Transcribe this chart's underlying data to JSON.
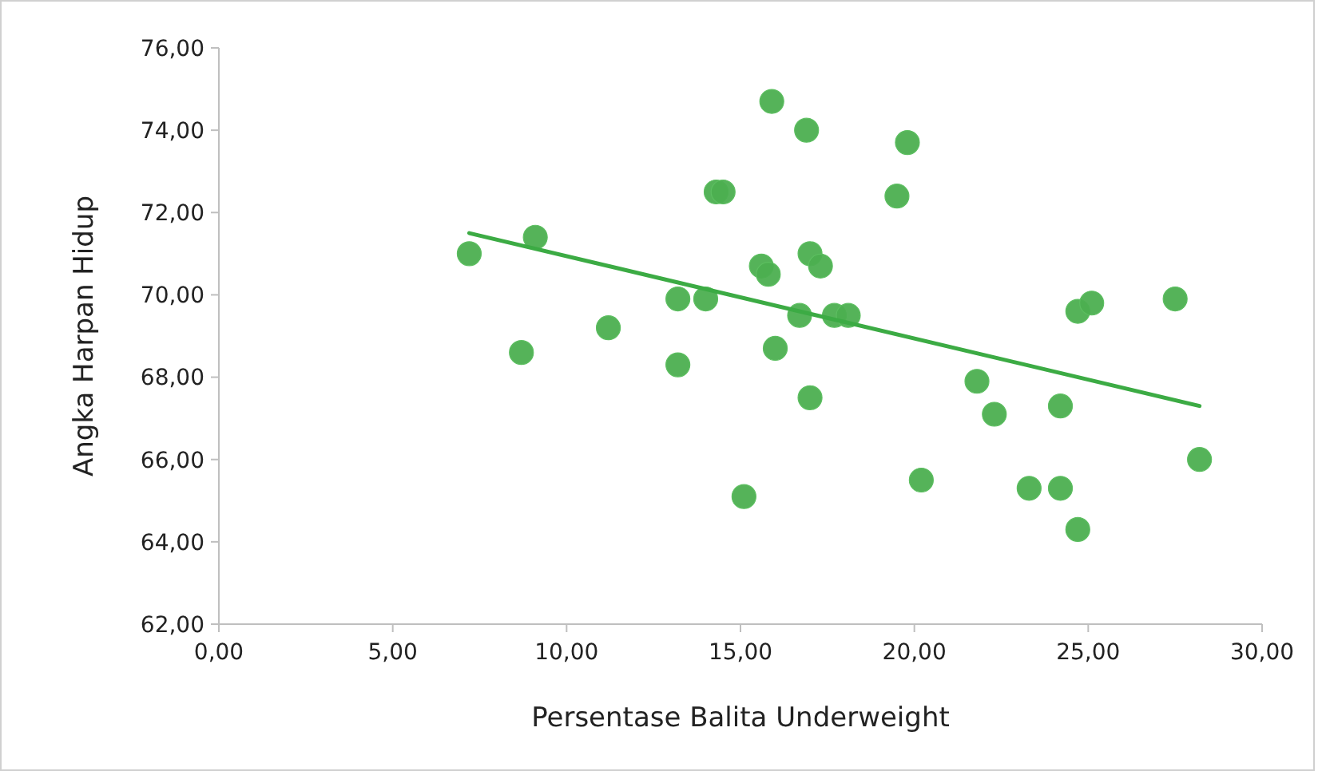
{
  "chart_data": {
    "type": "scatter",
    "xlabel": "Persentase Balita Underweight",
    "ylabel": "Angka Harpan Hidup",
    "xlim": [
      0,
      30
    ],
    "ylim": [
      62,
      76
    ],
    "xticks": [
      {
        "value": 0,
        "label": "0,00"
      },
      {
        "value": 5,
        "label": "5,00"
      },
      {
        "value": 10,
        "label": "10,00"
      },
      {
        "value": 15,
        "label": "15,00"
      },
      {
        "value": 20,
        "label": "20,00"
      },
      {
        "value": 25,
        "label": "25,00"
      },
      {
        "value": 30,
        "label": "30,00"
      }
    ],
    "yticks": [
      {
        "value": 62,
        "label": "62,00"
      },
      {
        "value": 64,
        "label": "64,00"
      },
      {
        "value": 66,
        "label": "66,00"
      },
      {
        "value": 68,
        "label": "68,00"
      },
      {
        "value": 70,
        "label": "70,00"
      },
      {
        "value": 72,
        "label": "72,00"
      },
      {
        "value": 74,
        "label": "74,00"
      },
      {
        "value": 76,
        "label": "76,00"
      }
    ],
    "series": [
      {
        "marker": "circle",
        "color": "#4caf50",
        "x": [
          7.2,
          9.1,
          8.7,
          11.2,
          13.2,
          14.0,
          13.2,
          14.3,
          14.5,
          15.9,
          16.9,
          19.8,
          19.5,
          15.6,
          15.8,
          17.0,
          17.3,
          16.7,
          17.7,
          18.1,
          16.0,
          17.0,
          15.1,
          20.2,
          21.8,
          22.3,
          23.3,
          24.2,
          24.2,
          24.7,
          24.7,
          25.1,
          27.5,
          28.2
        ],
        "values": [
          71.0,
          71.4,
          68.6,
          69.2,
          69.9,
          69.9,
          68.3,
          72.5,
          72.5,
          74.7,
          74.0,
          73.7,
          72.4,
          70.7,
          70.5,
          71.0,
          70.7,
          69.5,
          69.5,
          69.5,
          68.7,
          67.5,
          65.1,
          65.5,
          67.9,
          67.1,
          65.3,
          65.3,
          67.3,
          64.3,
          69.6,
          69.8,
          69.9,
          66.0
        ]
      },
      {
        "type": "line",
        "color": "#3cab44",
        "x": [
          7.2,
          28.2
        ],
        "values": [
          71.5,
          67.3
        ]
      }
    ]
  }
}
